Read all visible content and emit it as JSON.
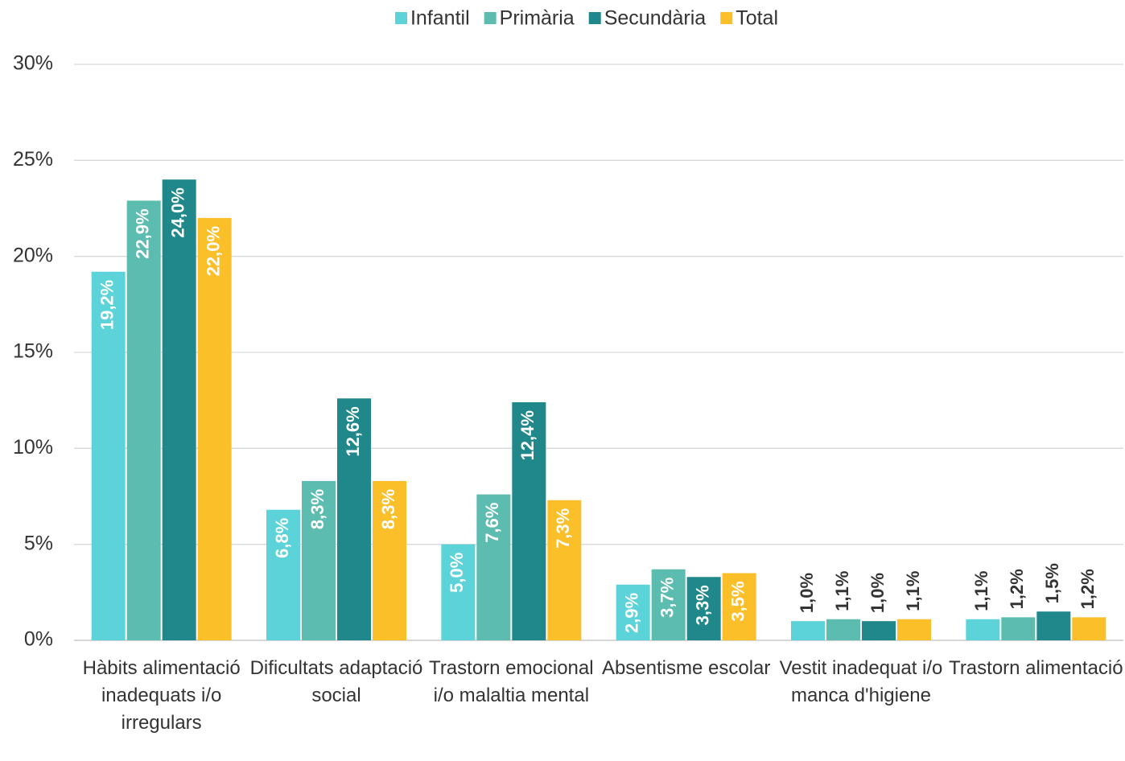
{
  "chart_data": {
    "type": "bar",
    "categories": [
      "Hàbits alimentació inadequats i/o irregulars",
      "Dificultats adaptació social",
      "Trastorn emocional i/o malaltia mental",
      "Absentisme escolar",
      "Vestit inadequat i/o manca d'higiene",
      "Trastorn alimentació"
    ],
    "series": [
      {
        "name": "Infantil",
        "color": "#5bd3d9",
        "values": [
          19.2,
          6.8,
          5.0,
          2.9,
          1.0,
          1.1
        ],
        "value_labels": [
          "19,2%",
          "6,8%",
          "5,0%",
          "2,9%",
          "1,0%",
          "1,1%"
        ]
      },
      {
        "name": "Primària",
        "color": "#5dbcb0",
        "values": [
          22.9,
          8.3,
          7.6,
          3.7,
          1.1,
          1.2
        ],
        "value_labels": [
          "22,9%",
          "8,3%",
          "7,6%",
          "3,7%",
          "1,1%",
          "1,2%"
        ]
      },
      {
        "name": "Secundària",
        "color": "#20878a",
        "values": [
          24.0,
          12.6,
          12.4,
          3.3,
          1.0,
          1.5
        ],
        "value_labels": [
          "24,0%",
          "12,6%",
          "12,4%",
          "3,3%",
          "1,0%",
          "1,5%"
        ]
      },
      {
        "name": "Total",
        "color": "#fbbf2a",
        "values": [
          22.0,
          8.3,
          7.3,
          3.5,
          1.1,
          1.2
        ],
        "value_labels": [
          "22,0%",
          "8,3%",
          "7,3%",
          "3,5%",
          "1,1%",
          "1,2%"
        ]
      }
    ],
    "ylim": [
      0,
      30
    ],
    "yticks": [
      {
        "value": 0,
        "label": "0%"
      },
      {
        "value": 5,
        "label": "5%"
      },
      {
        "value": 10,
        "label": "10%"
      },
      {
        "value": 15,
        "label": "15%"
      },
      {
        "value": 20,
        "label": "20%"
      },
      {
        "value": 25,
        "label": "25%"
      },
      {
        "value": 30,
        "label": "30%"
      }
    ],
    "grid": true,
    "legend": "top"
  }
}
